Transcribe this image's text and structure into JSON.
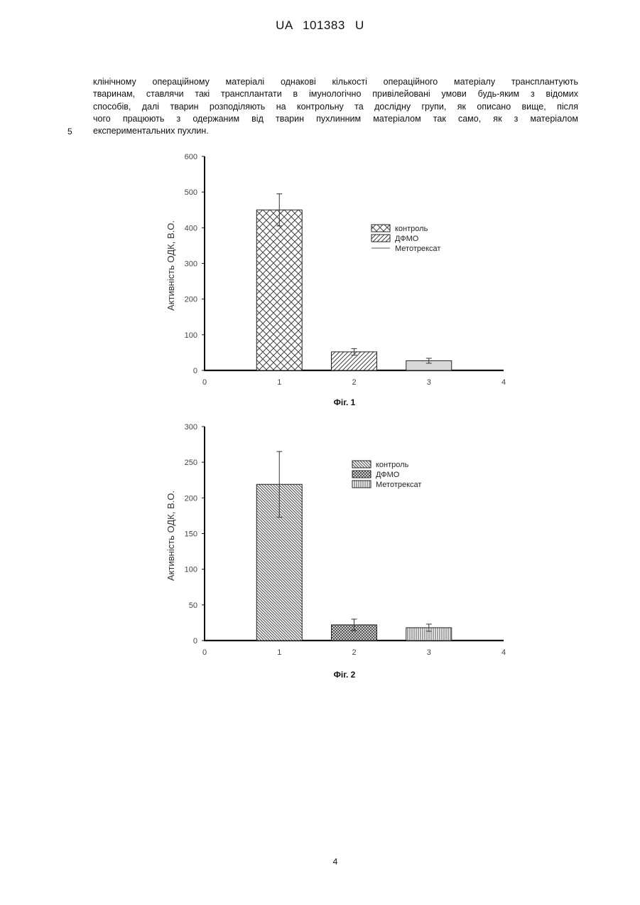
{
  "header": {
    "text": "UA 101383 U"
  },
  "paragraph": {
    "lines": [
      "клінічному операційному матеріалі однакові кількості операційного матеріалу трансплантують",
      "тваринам, ставлячи такі трансплантати в імунологічно привілейовані умови будь-яким з відомих",
      "способів, далі тварин розподіляють на контрольну та дослідну групи, як описано вище, після",
      "чого працюють з одержаним від тварин пухлинним матеріалом так само, як з матеріалом",
      "експериментальних пухлин."
    ],
    "line_number": "5"
  },
  "page_number": "4",
  "chart_data": [
    {
      "type": "bar",
      "caption": "Фіг. 1",
      "ylabel": "Активність ОДК, В.О.",
      "xlim": [
        0,
        4
      ],
      "ylim": [
        0,
        600
      ],
      "xticks": [
        "0",
        "1",
        "2",
        "3",
        "4"
      ],
      "yticks": [
        "0",
        "100",
        "200",
        "300",
        "400",
        "500",
        "600"
      ],
      "grid": false,
      "legend_position": "right",
      "series": [
        {
          "name": "контроль",
          "pattern": "crosshatch",
          "x": 1,
          "value": 450,
          "error": 45
        },
        {
          "name": "ДФМО",
          "pattern": "diagonal",
          "x": 2,
          "value": 52,
          "error": 9
        },
        {
          "name": "Метотрексат",
          "pattern": "line",
          "x": 3,
          "value": 27,
          "error": 7
        }
      ]
    },
    {
      "type": "bar",
      "caption": "Фіг. 2",
      "ylabel": "Активність ОДК, В.О.",
      "xlim": [
        0,
        4
      ],
      "ylim": [
        0,
        300
      ],
      "xticks": [
        "0",
        "1",
        "2",
        "3",
        "4"
      ],
      "yticks": [
        "0",
        "50",
        "100",
        "150",
        "200",
        "250",
        "300"
      ],
      "grid": false,
      "legend_position": "right",
      "series": [
        {
          "name": "контроль",
          "pattern": "backdiagonal",
          "x": 1,
          "value": 219,
          "error": 46
        },
        {
          "name": "ДФМО",
          "pattern": "dense-crosshatch",
          "x": 2,
          "value": 22,
          "error": 8
        },
        {
          "name": "Метотрексат",
          "pattern": "vertical",
          "x": 3,
          "value": 18,
          "error": 5
        }
      ]
    }
  ]
}
